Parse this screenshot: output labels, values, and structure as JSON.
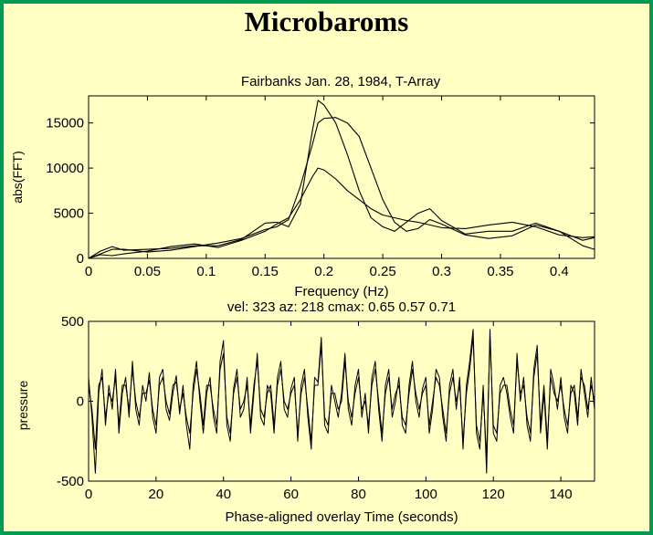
{
  "page": {
    "title": "Microbaroms",
    "background": "#ffffc4",
    "border_color": "#009a55"
  },
  "chart_data": [
    {
      "type": "line",
      "title": "Fairbanks Jan. 28, 1984, T-Array",
      "xlabel": "Frequency (Hz)",
      "ylabel": "abs(FFT)",
      "xlim": [
        0,
        0.43
      ],
      "ylim": [
        0,
        18000
      ],
      "xticks": [
        0,
        0.05,
        0.1,
        0.15,
        0.2,
        0.25,
        0.3,
        0.35,
        0.4
      ],
      "xtick_labels": [
        "0",
        "0.05",
        "0.1",
        "0.15",
        "0.2",
        "0.25",
        "0.3",
        "0.35",
        "0.4"
      ],
      "yticks": [
        0,
        5000,
        10000,
        15000
      ],
      "ytick_labels": [
        "0",
        "5000",
        "10000",
        "15000"
      ],
      "grid": false,
      "series": [
        {
          "x": [
            0,
            0.01,
            0.02,
            0.03,
            0.05,
            0.07,
            0.09,
            0.11,
            0.13,
            0.15,
            0.16,
            0.17,
            0.18,
            0.19,
            0.195,
            0.2,
            0.21,
            0.22,
            0.23,
            0.24,
            0.25,
            0.26,
            0.27,
            0.28,
            0.29,
            0.3,
            0.32,
            0.34,
            0.36,
            0.38,
            0.4,
            0.42,
            0.43
          ],
          "values": [
            0,
            500,
            1000,
            1000,
            700,
            900,
            1300,
            1700,
            2200,
            3200,
            3500,
            4300,
            8000,
            12500,
            15000,
            15500,
            15600,
            15000,
            13500,
            10000,
            6500,
            4000,
            3000,
            3300,
            4300,
            3800,
            2600,
            2200,
            2500,
            3700,
            3000,
            2000,
            2300
          ]
        },
        {
          "x": [
            0,
            0.01,
            0.02,
            0.03,
            0.05,
            0.07,
            0.09,
            0.11,
            0.13,
            0.15,
            0.16,
            0.17,
            0.18,
            0.19,
            0.195,
            0.2,
            0.21,
            0.22,
            0.23,
            0.24,
            0.25,
            0.26,
            0.27,
            0.28,
            0.29,
            0.3,
            0.32,
            0.34,
            0.36,
            0.38,
            0.4,
            0.42,
            0.43
          ],
          "values": [
            0,
            800,
            1300,
            900,
            1000,
            1100,
            1400,
            1400,
            2100,
            3900,
            4000,
            3500,
            6000,
            14000,
            17500,
            17000,
            15000,
            11500,
            7500,
            4500,
            3500,
            3000,
            4000,
            5000,
            5500,
            4200,
            2700,
            3000,
            3000,
            3900,
            3000,
            1400,
            1000
          ]
        },
        {
          "x": [
            0,
            0.01,
            0.02,
            0.03,
            0.05,
            0.07,
            0.09,
            0.11,
            0.13,
            0.15,
            0.16,
            0.17,
            0.18,
            0.19,
            0.195,
            0.2,
            0.21,
            0.22,
            0.23,
            0.24,
            0.25,
            0.26,
            0.27,
            0.28,
            0.29,
            0.3,
            0.32,
            0.34,
            0.36,
            0.38,
            0.4,
            0.42,
            0.43
          ],
          "values": [
            0,
            400,
            300,
            500,
            800,
            1300,
            1600,
            1200,
            2000,
            3000,
            3800,
            4500,
            6500,
            9000,
            10000,
            9800,
            8800,
            7500,
            6500,
            5500,
            4800,
            4500,
            4200,
            4000,
            3700,
            3400,
            3300,
            3700,
            4000,
            3500,
            2600,
            2300,
            2400
          ]
        }
      ]
    },
    {
      "type": "line",
      "title": "vel: 323 az: 218 cmax: 0.65 0.57 0.71",
      "xlabel": "Phase-aligned overlay   Time (seconds)",
      "ylabel": "pressure",
      "xlim": [
        0,
        150
      ],
      "ylim": [
        -500,
        500
      ],
      "xticks": [
        0,
        20,
        40,
        60,
        80,
        100,
        120,
        140
      ],
      "xtick_labels": [
        "0",
        "20",
        "40",
        "60",
        "80",
        "100",
        "120",
        "140"
      ],
      "yticks": [
        -500,
        0,
        500
      ],
      "ytick_labels": [
        "-500",
        "0",
        "500"
      ],
      "grid": false,
      "series": [
        {
          "x": [
            0,
            1,
            2,
            3,
            4,
            5,
            6,
            7,
            8,
            9,
            10,
            11,
            12,
            13,
            14,
            15,
            16,
            17,
            18,
            19,
            20,
            21,
            22,
            23,
            24,
            25,
            26,
            27,
            28,
            29,
            30,
            31,
            32,
            33,
            34,
            35,
            36,
            37,
            38,
            39,
            40,
            41,
            42,
            43,
            44,
            45,
            46,
            47,
            48,
            49,
            50,
            51,
            52,
            53,
            54,
            55,
            56,
            57,
            58,
            59,
            60,
            61,
            62,
            63,
            64,
            65,
            66,
            67,
            68,
            69,
            70,
            71,
            72,
            73,
            74,
            75,
            76,
            77,
            78,
            79,
            80,
            81,
            82,
            83,
            84,
            85,
            86,
            87,
            88,
            89,
            90,
            91,
            92,
            93,
            94,
            95,
            96,
            97,
            98,
            99,
            100,
            101,
            102,
            103,
            104,
            105,
            106,
            107,
            108,
            109,
            110,
            111,
            112,
            113,
            114,
            115,
            116,
            117,
            118,
            119,
            120,
            121,
            122,
            123,
            124,
            125,
            126,
            127,
            128,
            129,
            130,
            131,
            132,
            133,
            134,
            135,
            136,
            137,
            138,
            139,
            140,
            141,
            142,
            143,
            144,
            145,
            146,
            147,
            148,
            149,
            150
          ],
          "values": [
            150,
            -100,
            -450,
            50,
            200,
            -150,
            100,
            -50,
            200,
            -200,
            50,
            150,
            -100,
            250,
            -50,
            -150,
            100,
            0,
            180,
            -100,
            -200,
            150,
            200,
            -50,
            -120,
            50,
            160,
            -80,
            100,
            -150,
            -300,
            100,
            250,
            0,
            -200,
            50,
            150,
            -100,
            -200,
            250,
            380,
            -150,
            -250,
            80,
            200,
            -100,
            -50,
            150,
            -200,
            50,
            300,
            -100,
            -150,
            100,
            50,
            -200,
            150,
            250,
            -50,
            -100,
            80,
            150,
            -250,
            100,
            200,
            -100,
            -300,
            150,
            120,
            400,
            -150,
            -200,
            100,
            0,
            -100,
            50,
            300,
            -50,
            -150,
            100,
            200,
            -100,
            50,
            -200,
            150,
            250,
            -50,
            -250,
            100,
            200,
            -100,
            0,
            150,
            -150,
            -200,
            100,
            250,
            0,
            -100,
            80,
            150,
            -200,
            -50,
            200,
            150,
            -100,
            -250,
            100,
            200,
            -50,
            150,
            -300,
            100,
            250,
            450,
            -200,
            -300,
            100,
            -450,
            450,
            -200,
            -250,
            100,
            150,
            50,
            -100,
            -200,
            300,
            0,
            150,
            -150,
            -250,
            200,
            350,
            -200,
            50,
            -300,
            200,
            100,
            -50,
            150,
            -100,
            -200,
            100,
            50,
            -150,
            200,
            50,
            -100,
            150,
            -50
          ]
        },
        {
          "x": [
            0,
            1,
            2,
            3,
            4,
            5,
            6,
            7,
            8,
            9,
            10,
            11,
            12,
            13,
            14,
            15,
            16,
            17,
            18,
            19,
            20,
            21,
            22,
            23,
            24,
            25,
            26,
            27,
            28,
            29,
            30,
            31,
            32,
            33,
            34,
            35,
            36,
            37,
            38,
            39,
            40,
            41,
            42,
            43,
            44,
            45,
            46,
            47,
            48,
            49,
            50,
            51,
            52,
            53,
            54,
            55,
            56,
            57,
            58,
            59,
            60,
            61,
            62,
            63,
            64,
            65,
            66,
            67,
            68,
            69,
            70,
            71,
            72,
            73,
            74,
            75,
            76,
            77,
            78,
            79,
            80,
            81,
            82,
            83,
            84,
            85,
            86,
            87,
            88,
            89,
            90,
            91,
            92,
            93,
            94,
            95,
            96,
            97,
            98,
            99,
            100,
            101,
            102,
            103,
            104,
            105,
            106,
            107,
            108,
            109,
            110,
            111,
            112,
            113,
            114,
            115,
            116,
            117,
            118,
            119,
            120,
            121,
            122,
            123,
            124,
            125,
            126,
            127,
            128,
            129,
            130,
            131,
            132,
            133,
            134,
            135,
            136,
            137,
            138,
            139,
            140,
            141,
            142,
            143,
            144,
            145,
            146,
            147,
            148,
            149,
            150
          ],
          "values": [
            100,
            -50,
            -300,
            100,
            150,
            -100,
            50,
            0,
            150,
            -150,
            100,
            100,
            -50,
            200,
            0,
            -100,
            50,
            50,
            130,
            -50,
            -150,
            100,
            150,
            0,
            -80,
            100,
            120,
            -50,
            50,
            -100,
            -200,
            50,
            200,
            50,
            -150,
            100,
            100,
            -50,
            -150,
            200,
            300,
            -100,
            -200,
            50,
            150,
            -50,
            0,
            100,
            -150,
            100,
            250,
            -50,
            -100,
            50,
            100,
            -150,
            100,
            200,
            0,
            -50,
            50,
            100,
            -200,
            50,
            150,
            -50,
            -250,
            100,
            100,
            350,
            -100,
            -150,
            50,
            50,
            -50,
            0,
            250,
            0,
            -100,
            50,
            150,
            -50,
            0,
            -150,
            100,
            200,
            0,
            -200,
            50,
            150,
            -50,
            50,
            100,
            -100,
            -150,
            50,
            200,
            50,
            -50,
            50,
            100,
            -150,
            0,
            150,
            100,
            -50,
            -200,
            50,
            150,
            0,
            100,
            -250,
            50,
            200,
            400,
            -150,
            -250,
            50,
            -350,
            400,
            -150,
            -200,
            50,
            100,
            100,
            -50,
            -150,
            250,
            50,
            100,
            -100,
            -200,
            150,
            300,
            -150,
            100,
            -250,
            150,
            50,
            0,
            100,
            -50,
            -150,
            50,
            100,
            -100,
            150,
            100,
            -50,
            100,
            0
          ]
        }
      ]
    }
  ]
}
